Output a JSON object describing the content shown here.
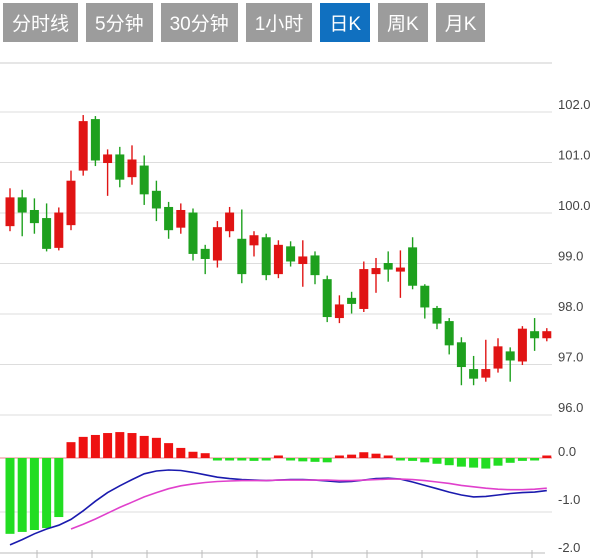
{
  "tabbar": {
    "items": [
      {
        "key": "time-line",
        "label": "分时线",
        "selected": false
      },
      {
        "key": "5-min",
        "label": "5分钟",
        "selected": false
      },
      {
        "key": "30-min",
        "label": "30分钟",
        "selected": false
      },
      {
        "key": "1-hour",
        "label": "1小时",
        "selected": false
      },
      {
        "key": "daily-k",
        "label": "日K",
        "selected": true
      },
      {
        "key": "weekly-k",
        "label": "周K",
        "selected": false
      },
      {
        "key": "monthly-k",
        "label": "月K",
        "selected": false
      }
    ],
    "tab_bg": "#9c9c9c",
    "tab_selected_bg": "#1070c0",
    "tab_text": "#ffffff"
  },
  "chart_data": {
    "type": "candlestick+macd",
    "title": "",
    "legend": "none",
    "grid": true,
    "price_axis": {
      "side": "right",
      "ticks": [
        102.0,
        101.0,
        100.0,
        99.0,
        98.0,
        97.0,
        96.0
      ],
      "labels": [
        "102.0",
        "101.0",
        "100.0",
        "99.0",
        "98.0",
        "97.0",
        "96.0"
      ],
      "range": [
        95.8,
        102.9
      ]
    },
    "macd_axis": {
      "side": "right",
      "ticks": [
        0.0,
        -1.0,
        -2.0
      ],
      "labels": [
        "0.0",
        "-1.0",
        "-2.0"
      ],
      "range": [
        0.6,
        -2.0
      ]
    },
    "candles": [
      {
        "o": 99.7,
        "c": 100.27,
        "l": 99.6,
        "h": 100.45
      },
      {
        "o": 100.27,
        "c": 99.97,
        "l": 99.5,
        "h": 100.42
      },
      {
        "o": 100.02,
        "c": 99.76,
        "l": 99.55,
        "h": 100.25
      },
      {
        "o": 99.86,
        "c": 99.25,
        "l": 99.2,
        "h": 100.15
      },
      {
        "o": 99.27,
        "c": 99.97,
        "l": 99.22,
        "h": 100.07
      },
      {
        "o": 99.72,
        "c": 100.6,
        "l": 99.62,
        "h": 100.8
      },
      {
        "o": 100.8,
        "c": 101.78,
        "l": 100.7,
        "h": 101.9
      },
      {
        "o": 101.82,
        "c": 101.0,
        "l": 100.89,
        "h": 101.88
      },
      {
        "o": 100.95,
        "c": 101.12,
        "l": 100.3,
        "h": 101.22
      },
      {
        "o": 101.12,
        "c": 100.62,
        "l": 100.47,
        "h": 101.27
      },
      {
        "o": 100.67,
        "c": 101.02,
        "l": 100.52,
        "h": 101.3
      },
      {
        "o": 100.9,
        "c": 100.33,
        "l": 100.12,
        "h": 101.1
      },
      {
        "o": 100.4,
        "c": 100.05,
        "l": 99.8,
        "h": 100.6
      },
      {
        "o": 100.08,
        "c": 99.62,
        "l": 99.45,
        "h": 100.18
      },
      {
        "o": 99.67,
        "c": 100.02,
        "l": 99.55,
        "h": 100.15
      },
      {
        "o": 99.97,
        "c": 99.15,
        "l": 99.02,
        "h": 100.05
      },
      {
        "o": 99.25,
        "c": 99.05,
        "l": 98.75,
        "h": 99.33
      },
      {
        "o": 99.02,
        "c": 99.68,
        "l": 98.88,
        "h": 99.8
      },
      {
        "o": 99.6,
        "c": 99.97,
        "l": 99.48,
        "h": 100.08
      },
      {
        "o": 99.45,
        "c": 98.75,
        "l": 98.57,
        "h": 100.03
      },
      {
        "o": 99.32,
        "c": 99.52,
        "l": 99.1,
        "h": 99.6
      },
      {
        "o": 99.48,
        "c": 98.73,
        "l": 98.63,
        "h": 99.55
      },
      {
        "o": 98.75,
        "c": 99.33,
        "l": 98.67,
        "h": 99.42
      },
      {
        "o": 99.3,
        "c": 99.0,
        "l": 98.9,
        "h": 99.4
      },
      {
        "o": 98.95,
        "c": 99.1,
        "l": 98.5,
        "h": 99.42
      },
      {
        "o": 99.12,
        "c": 98.73,
        "l": 98.55,
        "h": 99.2
      },
      {
        "o": 98.65,
        "c": 97.9,
        "l": 97.8,
        "h": 98.72
      },
      {
        "o": 97.88,
        "c": 98.15,
        "l": 97.78,
        "h": 98.33
      },
      {
        "o": 98.28,
        "c": 98.16,
        "l": 97.97,
        "h": 98.4
      },
      {
        "o": 98.06,
        "c": 98.85,
        "l": 98.0,
        "h": 99.0
      },
      {
        "o": 98.75,
        "c": 98.87,
        "l": 98.38,
        "h": 99.07
      },
      {
        "o": 98.97,
        "c": 98.84,
        "l": 98.6,
        "h": 99.2
      },
      {
        "o": 98.8,
        "c": 98.88,
        "l": 98.28,
        "h": 99.22
      },
      {
        "o": 99.28,
        "c": 98.52,
        "l": 98.45,
        "h": 99.48
      },
      {
        "o": 98.52,
        "c": 98.09,
        "l": 97.87,
        "h": 98.55
      },
      {
        "o": 98.08,
        "c": 97.77,
        "l": 97.66,
        "h": 98.12
      },
      {
        "o": 97.82,
        "c": 97.34,
        "l": 97.16,
        "h": 97.88
      },
      {
        "o": 97.4,
        "c": 96.91,
        "l": 96.55,
        "h": 97.5
      },
      {
        "o": 96.87,
        "c": 96.68,
        "l": 96.55,
        "h": 97.13
      },
      {
        "o": 96.7,
        "c": 96.87,
        "l": 96.62,
        "h": 97.45
      },
      {
        "o": 96.88,
        "c": 97.32,
        "l": 96.8,
        "h": 97.48
      },
      {
        "o": 97.22,
        "c": 97.04,
        "l": 96.62,
        "h": 97.3
      },
      {
        "o": 97.02,
        "c": 97.67,
        "l": 96.95,
        "h": 97.72
      },
      {
        "o": 97.62,
        "c": 97.48,
        "l": 97.23,
        "h": 97.88
      },
      {
        "o": 97.48,
        "c": 97.62,
        "l": 97.42,
        "h": 97.68
      }
    ],
    "macd": {
      "histogram": [
        -1.58,
        -1.54,
        -1.5,
        -1.46,
        -1.23,
        0.33,
        0.44,
        0.48,
        0.52,
        0.54,
        0.52,
        0.46,
        0.42,
        0.31,
        0.21,
        0.13,
        0.1,
        -0.03,
        -0.04,
        -0.05,
        -0.06,
        -0.03,
        0.04,
        -0.05,
        -0.07,
        -0.08,
        -0.09,
        0.04,
        0.07,
        0.12,
        0.09,
        0.04,
        -0.04,
        -0.06,
        -0.09,
        -0.12,
        -0.15,
        -0.18,
        -0.2,
        -0.22,
        -0.16,
        -0.1,
        -0.06,
        -0.04,
        0.05
      ],
      "dif": [
        -1.81,
        -1.7,
        -1.58,
        -1.48,
        -1.4,
        -1.28,
        -1.1,
        -0.9,
        -0.72,
        -0.58,
        -0.45,
        -0.33,
        -0.27,
        -0.25,
        -0.26,
        -0.3,
        -0.35,
        -0.4,
        -0.43,
        -0.45,
        -0.46,
        -0.47,
        -0.46,
        -0.45,
        -0.45,
        -0.46,
        -0.48,
        -0.5,
        -0.49,
        -0.46,
        -0.43,
        -0.42,
        -0.44,
        -0.5,
        -0.57,
        -0.64,
        -0.71,
        -0.77,
        -0.81,
        -0.8,
        -0.77,
        -0.74,
        -0.72,
        -0.71,
        -0.68
      ],
      "dea": [
        null,
        null,
        null,
        null,
        null,
        -1.48,
        -1.38,
        -1.27,
        -1.15,
        -1.03,
        -0.92,
        -0.81,
        -0.72,
        -0.64,
        -0.58,
        -0.54,
        -0.51,
        -0.49,
        -0.48,
        -0.47,
        -0.47,
        -0.47,
        -0.46,
        -0.46,
        -0.46,
        -0.46,
        -0.46,
        -0.47,
        -0.47,
        -0.46,
        -0.45,
        -0.44,
        -0.44,
        -0.45,
        -0.47,
        -0.5,
        -0.53,
        -0.57,
        -0.6,
        -0.63,
        -0.65,
        -0.66,
        -0.66,
        -0.65,
        -0.63
      ]
    },
    "colors": {
      "up": "#e01414",
      "down": "#1ea01e",
      "hist_up": "#ee1111",
      "hist_down": "#22dd22",
      "dif_line": "#1a1aae",
      "dea_line": "#e040cc",
      "grid": "#dddddd",
      "border": "#cccccc",
      "zero_line": "#ef9aa2",
      "axis_text": "#444444"
    }
  }
}
